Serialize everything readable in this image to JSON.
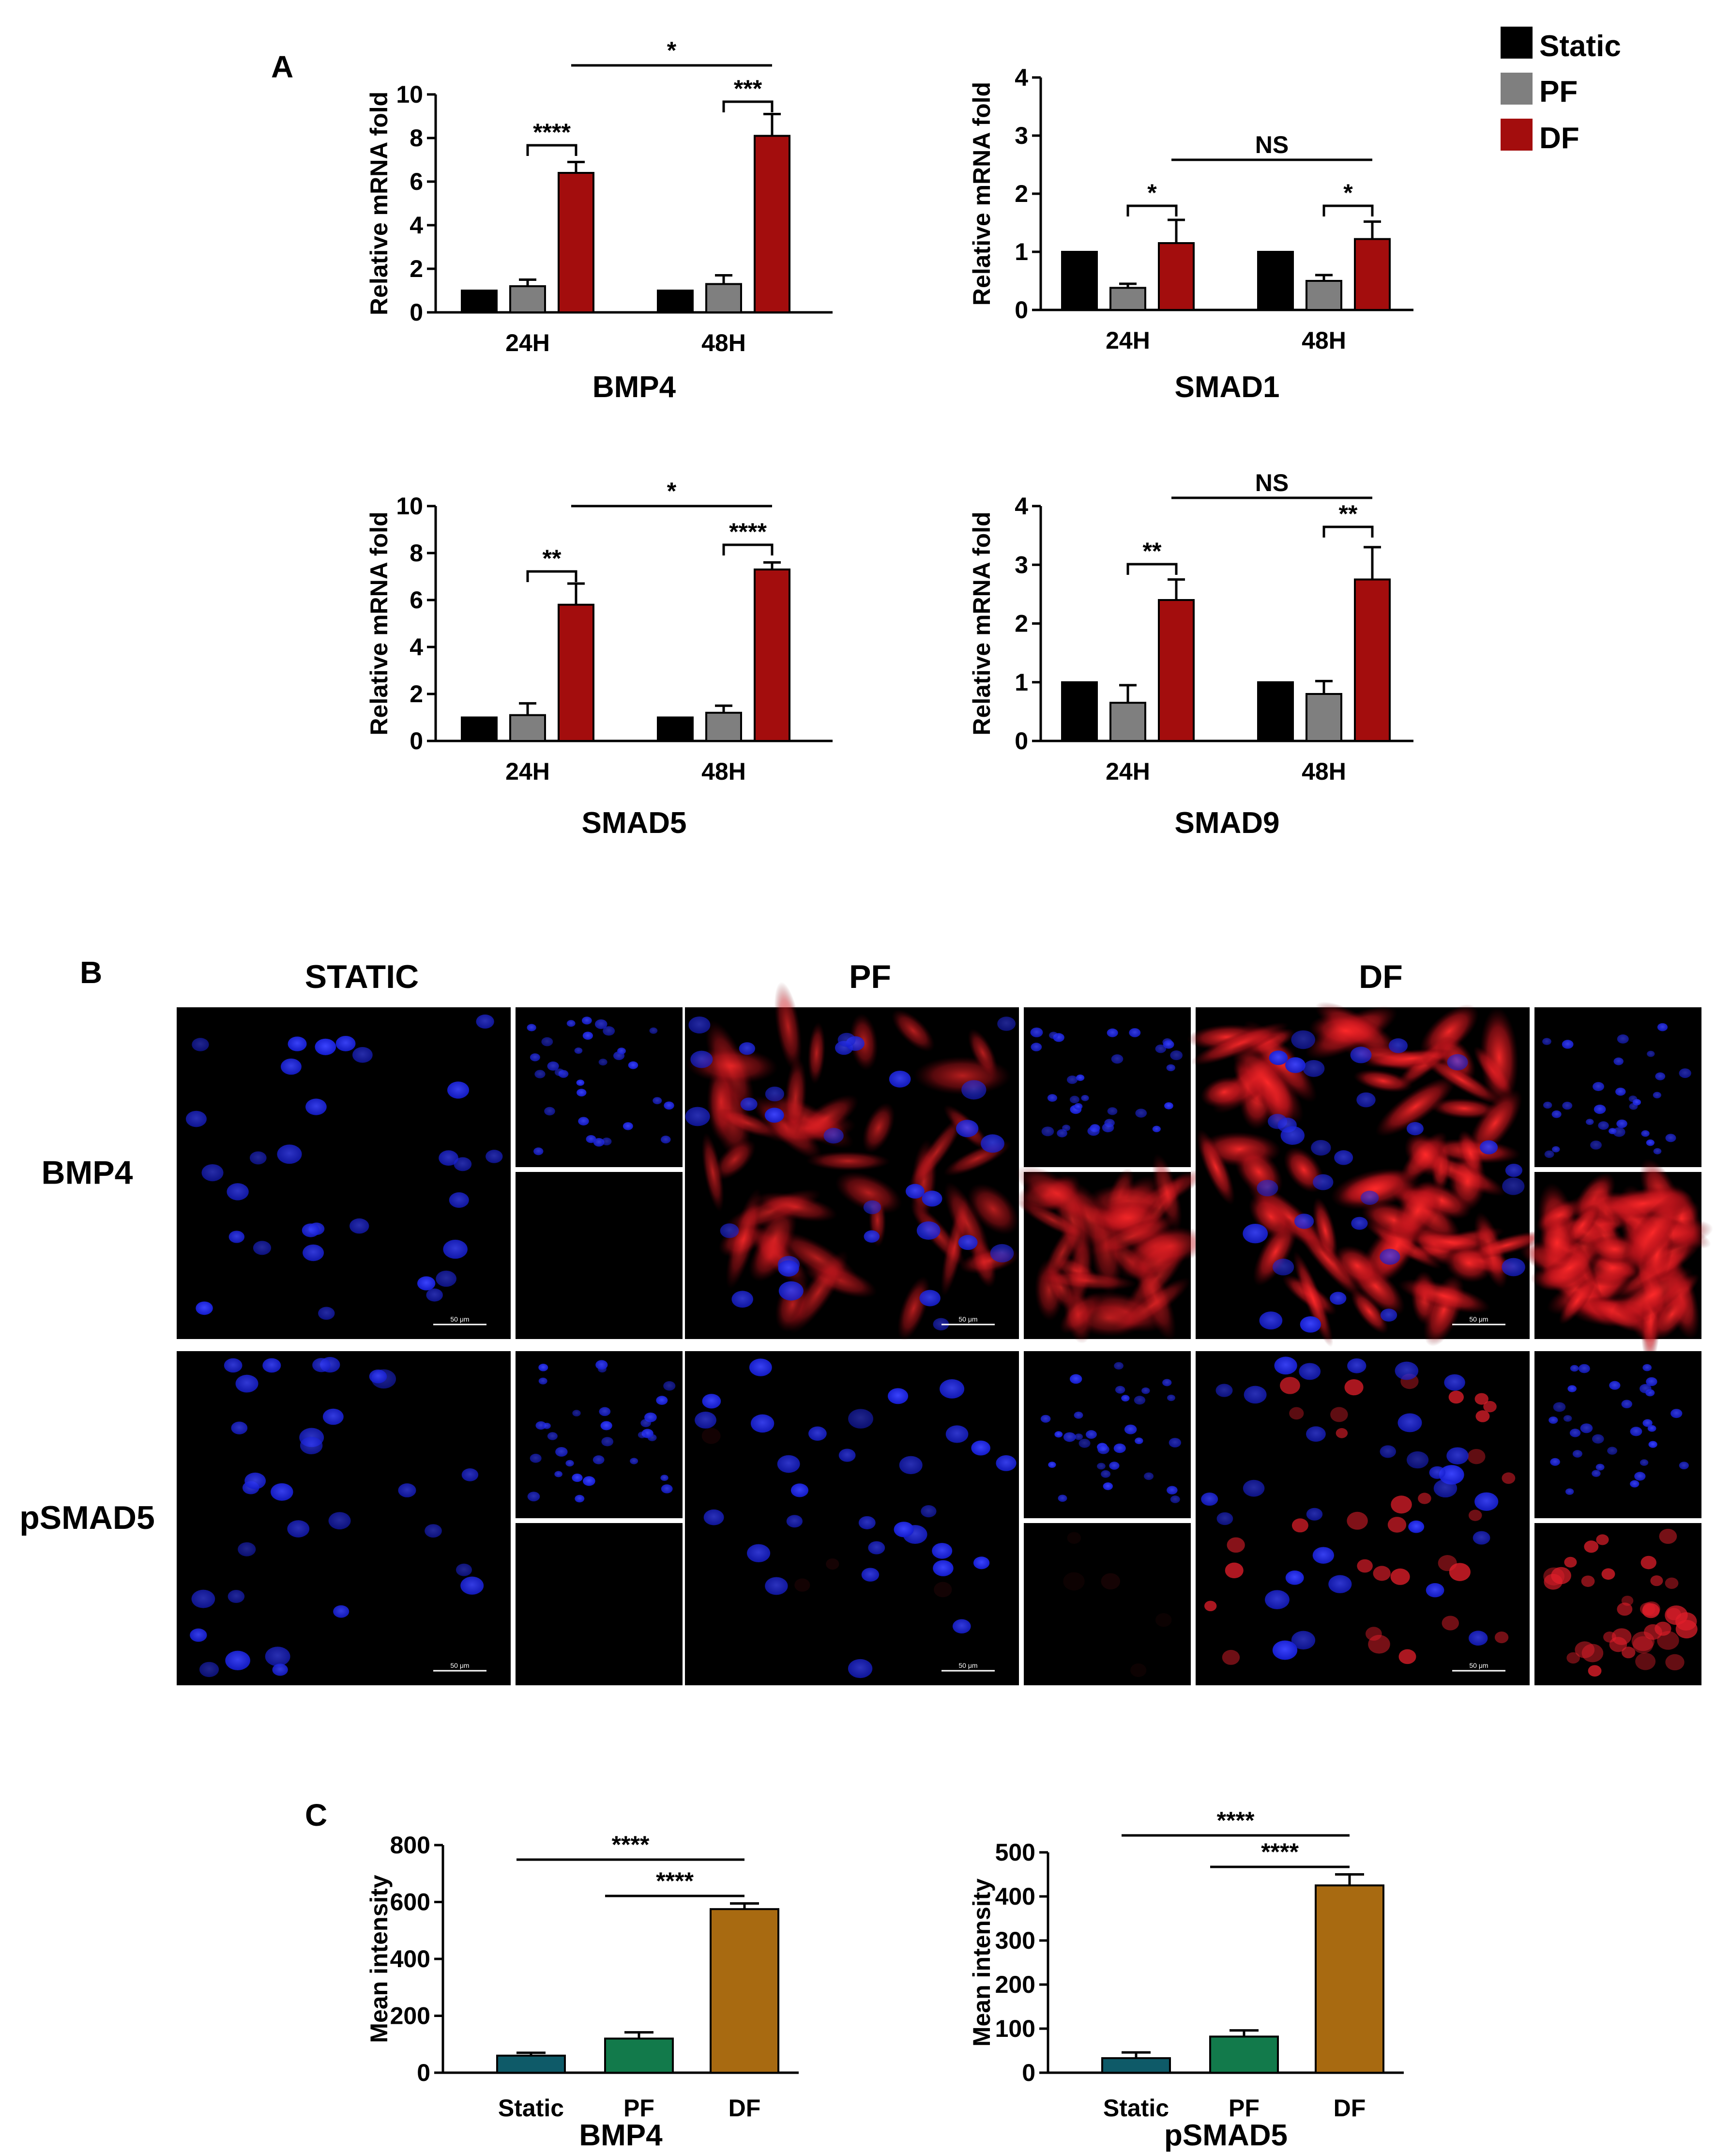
{
  "panels": {
    "a": "A",
    "b": "B",
    "c": "C"
  },
  "legend": [
    {
      "label": "Static",
      "color": "#000000"
    },
    {
      "label": "PF",
      "color": "#7f7f7f"
    },
    {
      "label": "DF",
      "color": "#a30d0d"
    }
  ],
  "microscopy": {
    "columns": [
      "STATIC",
      "PF",
      "DF"
    ],
    "rows": [
      "BMP4",
      "pSMAD5"
    ],
    "scale_bar": "50 μm",
    "colors": {
      "nucleus": "#1a23ff",
      "stain": "#e11e2a",
      "background": "#000000"
    },
    "stain_level": {
      "BMP4": [
        0.0,
        0.35,
        0.9
      ],
      "pSMAD5": [
        0.0,
        0.1,
        0.8
      ]
    }
  },
  "chart_data": [
    {
      "type": "bar",
      "panel": "A",
      "title": "BMP4",
      "ylabel": "Relative mRNA fold",
      "categories": [
        "24H",
        "48H"
      ],
      "ylim": [
        0,
        10
      ],
      "yticks": [
        0,
        2,
        4,
        6,
        8,
        10
      ],
      "series": [
        {
          "name": "Static",
          "color": "#000000",
          "values": [
            1.0,
            1.0
          ],
          "errors": [
            0,
            0
          ]
        },
        {
          "name": "PF",
          "color": "#7f7f7f",
          "values": [
            1.2,
            1.3
          ],
          "errors": [
            0.3,
            0.4
          ]
        },
        {
          "name": "DF",
          "color": "#a30d0d",
          "values": [
            6.4,
            8.1
          ],
          "errors": [
            0.5,
            1.0
          ]
        }
      ],
      "significance": [
        {
          "label": "****",
          "group": 0,
          "from": 1,
          "to": 2
        },
        {
          "label": "***",
          "group": 1,
          "from": 1,
          "to": 2
        },
        {
          "label": "*",
          "between_groups": [
            0,
            1
          ],
          "series": 2
        }
      ]
    },
    {
      "type": "bar",
      "panel": "A",
      "title": "SMAD1",
      "ylabel": "Relative mRNA fold",
      "categories": [
        "24H",
        "48H"
      ],
      "ylim": [
        0,
        4
      ],
      "yticks": [
        0,
        1,
        2,
        3,
        4
      ],
      "series": [
        {
          "name": "Static",
          "color": "#000000",
          "values": [
            1.0,
            1.0
          ],
          "errors": [
            0,
            0
          ]
        },
        {
          "name": "PF",
          "color": "#7f7f7f",
          "values": [
            0.38,
            0.5
          ],
          "errors": [
            0.07,
            0.1
          ]
        },
        {
          "name": "DF",
          "color": "#a30d0d",
          "values": [
            1.15,
            1.22
          ],
          "errors": [
            0.4,
            0.3
          ]
        }
      ],
      "significance": [
        {
          "label": "*",
          "group": 0,
          "from": 1,
          "to": 2
        },
        {
          "label": "*",
          "group": 1,
          "from": 1,
          "to": 2
        },
        {
          "label": "NS",
          "between_groups": [
            0,
            1
          ],
          "series": 2
        }
      ]
    },
    {
      "type": "bar",
      "panel": "A",
      "title": "SMAD5",
      "ylabel": "Relative mRNA fold",
      "categories": [
        "24H",
        "48H"
      ],
      "ylim": [
        0,
        10
      ],
      "yticks": [
        0,
        2,
        4,
        6,
        8,
        10
      ],
      "series": [
        {
          "name": "Static",
          "color": "#000000",
          "values": [
            1.0,
            1.0
          ],
          "errors": [
            0,
            0
          ]
        },
        {
          "name": "PF",
          "color": "#7f7f7f",
          "values": [
            1.1,
            1.2
          ],
          "errors": [
            0.5,
            0.3
          ]
        },
        {
          "name": "DF",
          "color": "#a30d0d",
          "values": [
            5.8,
            7.3
          ],
          "errors": [
            0.9,
            0.3
          ]
        }
      ],
      "significance": [
        {
          "label": "**",
          "group": 0,
          "from": 1,
          "to": 2
        },
        {
          "label": "****",
          "group": 1,
          "from": 1,
          "to": 2
        },
        {
          "label": "*",
          "between_groups": [
            0,
            1
          ],
          "series": 2
        }
      ]
    },
    {
      "type": "bar",
      "panel": "A",
      "title": "SMAD9",
      "ylabel": "Relative mRNA fold",
      "categories": [
        "24H",
        "48H"
      ],
      "ylim": [
        0,
        4
      ],
      "yticks": [
        0,
        1,
        2,
        3,
        4
      ],
      "series": [
        {
          "name": "Static",
          "color": "#000000",
          "values": [
            1.0,
            1.0
          ],
          "errors": [
            0,
            0
          ]
        },
        {
          "name": "PF",
          "color": "#7f7f7f",
          "values": [
            0.65,
            0.8
          ],
          "errors": [
            0.3,
            0.22
          ]
        },
        {
          "name": "DF",
          "color": "#a30d0d",
          "values": [
            2.4,
            2.75
          ],
          "errors": [
            0.35,
            0.55
          ]
        }
      ],
      "significance": [
        {
          "label": "**",
          "group": 0,
          "from": 1,
          "to": 2
        },
        {
          "label": "**",
          "group": 1,
          "from": 1,
          "to": 2
        },
        {
          "label": "NS",
          "between_groups": [
            0,
            1
          ],
          "series": 2
        }
      ]
    },
    {
      "type": "bar",
      "panel": "C",
      "title": "BMP4",
      "ylabel": "Mean intensity",
      "categories": [
        "Static",
        "PF",
        "DF"
      ],
      "colors": [
        "#0e5a68",
        "#127a4b",
        "#a86a11"
      ],
      "values": [
        60,
        120,
        575
      ],
      "errors": [
        10,
        22,
        20
      ],
      "ylim": [
        0,
        800
      ],
      "yticks": [
        0,
        200,
        400,
        600,
        800
      ],
      "significance": [
        {
          "label": "****",
          "from": 0,
          "to": 2
        },
        {
          "label": "****",
          "from": 1,
          "to": 2
        }
      ]
    },
    {
      "type": "bar",
      "panel": "C",
      "title": "pSMAD5",
      "ylabel": "Mean intensity",
      "categories": [
        "Static",
        "PF",
        "DF"
      ],
      "colors": [
        "#0e5a68",
        "#127a4b",
        "#a86a11"
      ],
      "values": [
        33,
        82,
        425
      ],
      "errors": [
        13,
        14,
        25
      ],
      "ylim": [
        0,
        500
      ],
      "yticks": [
        0,
        100,
        200,
        300,
        400,
        500
      ],
      "significance": [
        {
          "label": "****",
          "from": 0,
          "to": 2
        },
        {
          "label": "****",
          "from": 1,
          "to": 2
        }
      ]
    }
  ]
}
